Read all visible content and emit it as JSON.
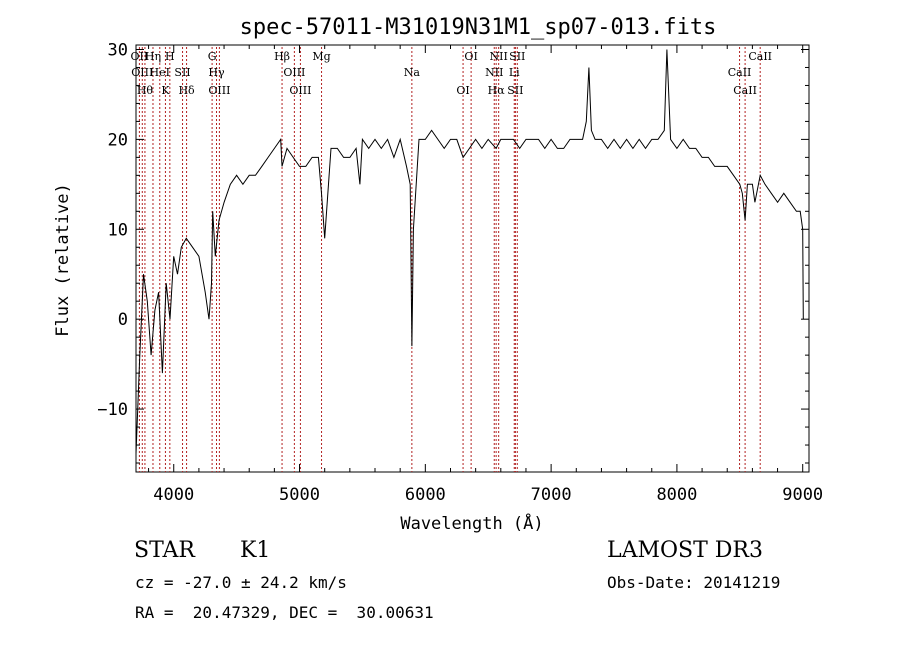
{
  "chart_data": {
    "type": "line",
    "title": "spec-57011-M31019N31M1_sp07-013.fits",
    "xlabel": "Wavelength (Å)",
    "ylabel": "Flux (relative)",
    "xlim": [
      3700,
      9050
    ],
    "ylim": [
      -17,
      30.5
    ],
    "xticks": [
      4000,
      5000,
      6000,
      7000,
      8000,
      9000
    ],
    "yticks": [
      -10,
      0,
      10,
      20,
      30
    ],
    "grid": false,
    "line_color": "#000000",
    "marker_color": "#b22222",
    "series": [
      {
        "x": [
          3700,
          3730,
          3760,
          3790,
          3820,
          3850,
          3880,
          3910,
          3940,
          3970,
          4000,
          4030,
          4060,
          4100,
          4150,
          4200,
          4250,
          4280,
          4300,
          4310,
          4330,
          4360,
          4400,
          4450,
          4500,
          4550,
          4600,
          4650,
          4700,
          4750,
          4800,
          4850,
          4861,
          4900,
          4950,
          5000,
          5050,
          5100,
          5150,
          5175,
          5200,
          5250,
          5300,
          5350,
          5400,
          5450,
          5480,
          5500,
          5550,
          5600,
          5650,
          5700,
          5750,
          5800,
          5850,
          5880,
          5893,
          5905,
          5950,
          6000,
          6050,
          6100,
          6150,
          6200,
          6250,
          6300,
          6350,
          6400,
          6450,
          6500,
          6563,
          6600,
          6650,
          6700,
          6750,
          6800,
          6850,
          6900,
          6950,
          7000,
          7050,
          7100,
          7150,
          7200,
          7250,
          7280,
          7300,
          7320,
          7350,
          7400,
          7450,
          7500,
          7550,
          7600,
          7650,
          7700,
          7750,
          7800,
          7850,
          7900,
          7920,
          7950,
          8000,
          8050,
          8100,
          8150,
          8200,
          8250,
          8300,
          8350,
          8400,
          8450,
          8500,
          8520,
          8542,
          8560,
          8600,
          8620,
          8662,
          8700,
          8750,
          8800,
          8850,
          8900,
          8950,
          8980,
          9000,
          9005
        ],
        "y": [
          -15,
          -4,
          5,
          2,
          -4,
          1,
          3,
          -6,
          4,
          0,
          7,
          5,
          8,
          9,
          8,
          7,
          3,
          0,
          4,
          12,
          7,
          11,
          13,
          15,
          16,
          15,
          16,
          16,
          17,
          18,
          19,
          20,
          17,
          19,
          18,
          17,
          17,
          18,
          18,
          14,
          9,
          19,
          19,
          18,
          18,
          19,
          15,
          20,
          19,
          20,
          19,
          20,
          18,
          20,
          17,
          15,
          -3,
          10,
          20,
          20,
          21,
          20,
          19,
          20,
          20,
          18,
          19,
          20,
          19,
          20,
          19,
          20,
          20,
          20,
          19,
          20,
          20,
          20,
          19,
          20,
          19,
          19,
          20,
          20,
          20,
          22,
          28,
          21,
          20,
          20,
          19,
          20,
          19,
          20,
          19,
          20,
          19,
          20,
          20,
          21,
          30,
          20,
          19,
          20,
          19,
          19,
          18,
          18,
          17,
          17,
          17,
          16,
          15,
          14,
          11,
          15,
          15,
          13,
          16,
          15,
          14,
          13,
          14,
          13,
          12,
          12,
          10,
          0
        ]
      }
    ],
    "lines": [
      {
        "x": 3727,
        "label": "OII"
      },
      {
        "x": 3750,
        "label": "OIII"
      },
      {
        "x": 3771,
        "label": "Hθ"
      },
      {
        "x": 3835,
        "label": "Hη"
      },
      {
        "x": 3889,
        "label": "HeI"
      },
      {
        "x": 3934,
        "label": "K"
      },
      {
        "x": 3969,
        "label": "H"
      },
      {
        "x": 4070,
        "label": "SII"
      },
      {
        "x": 4102,
        "label": "Hδ"
      },
      {
        "x": 4305,
        "label": "G"
      },
      {
        "x": 4340,
        "label": "Hγ"
      },
      {
        "x": 4363,
        "label": "OIII"
      },
      {
        "x": 4861,
        "label": "Hβ"
      },
      {
        "x": 4959,
        "label": "OIII"
      },
      {
        "x": 5007,
        "label": "OIII"
      },
      {
        "x": 5175,
        "label": "Mg"
      },
      {
        "x": 5893,
        "label": "Na"
      },
      {
        "x": 6300,
        "label": "OI"
      },
      {
        "x": 6364,
        "label": "OI"
      },
      {
        "x": 6548,
        "label": "NII"
      },
      {
        "x": 6563,
        "label": "Hα"
      },
      {
        "x": 6583,
        "label": "NII"
      },
      {
        "x": 6707,
        "label": "Li"
      },
      {
        "x": 6716,
        "label": "SII"
      },
      {
        "x": 6731,
        "label": "SII"
      },
      {
        "x": 8498,
        "label": "CaII"
      },
      {
        "x": 8542,
        "label": "CaII"
      },
      {
        "x": 8662,
        "label": "CaII"
      }
    ]
  },
  "info": {
    "class": "STAR",
    "subclass": "K1",
    "survey": "LAMOST DR3",
    "cz": "cz = -27.0 ± 24.2 km/s",
    "obs_date": "Obs-Date: 20141219",
    "coords": "RA =  20.47329, DEC =  30.00631"
  }
}
